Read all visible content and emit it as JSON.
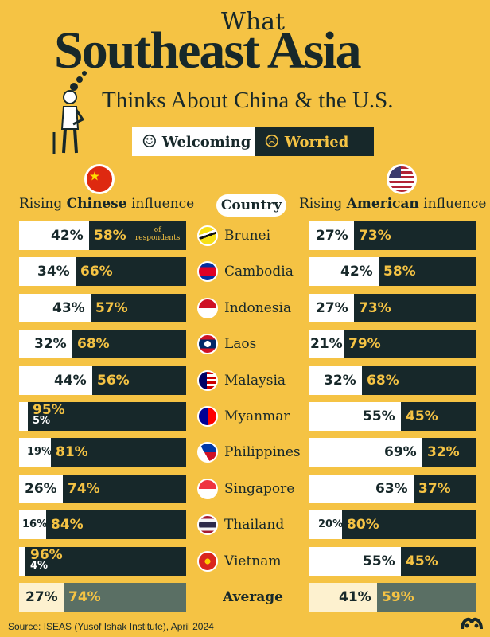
{
  "title": {
    "line1": "What",
    "line2": "Southeast Asia",
    "line3": "Thinks About China & the U.S."
  },
  "legend": {
    "welcoming": "Welcoming",
    "worried": "Worried",
    "welcoming_icon": "smile-icon",
    "worried_icon": "frown-icon"
  },
  "colors": {
    "background": "#f5c344",
    "welcoming": "#ffffff",
    "worried": "#17282a",
    "average_welcoming": "#fdf1cf",
    "average_worried": "#5a6f64"
  },
  "headers": {
    "china_prefix": "Rising ",
    "china_bold": "Chinese",
    "china_suffix": " influence",
    "country": "Country",
    "us_prefix": "Rising ",
    "us_bold": "American",
    "us_suffix": " influence"
  },
  "note": {
    "of_respondents_line1": "of",
    "of_respondents_line2": "respondents"
  },
  "footer": "Source: ISEAS (Yusof Ishak Institute), April 2024",
  "chart_data": {
    "type": "bar",
    "stacked": true,
    "unit": "%",
    "categories": [
      "Brunei",
      "Cambodia",
      "Indonesia",
      "Laos",
      "Malaysia",
      "Myanmar",
      "Philippines",
      "Singapore",
      "Thailand",
      "Vietnam",
      "Average"
    ],
    "series": [
      {
        "name": "Rising Chinese influence · Welcoming",
        "values": [
          42,
          34,
          43,
          32,
          44,
          5,
          19,
          26,
          16,
          4,
          27
        ]
      },
      {
        "name": "Rising Chinese influence · Worried",
        "values": [
          58,
          66,
          57,
          68,
          56,
          95,
          81,
          74,
          84,
          96,
          74
        ]
      },
      {
        "name": "Rising American influence · Welcoming",
        "values": [
          27,
          42,
          27,
          21,
          32,
          55,
          69,
          63,
          20,
          55,
          41
        ]
      },
      {
        "name": "Rising American influence · Worried",
        "values": [
          73,
          58,
          73,
          79,
          68,
          45,
          32,
          37,
          80,
          45,
          59
        ]
      }
    ],
    "legend": [
      "Welcoming",
      "Worried"
    ]
  }
}
